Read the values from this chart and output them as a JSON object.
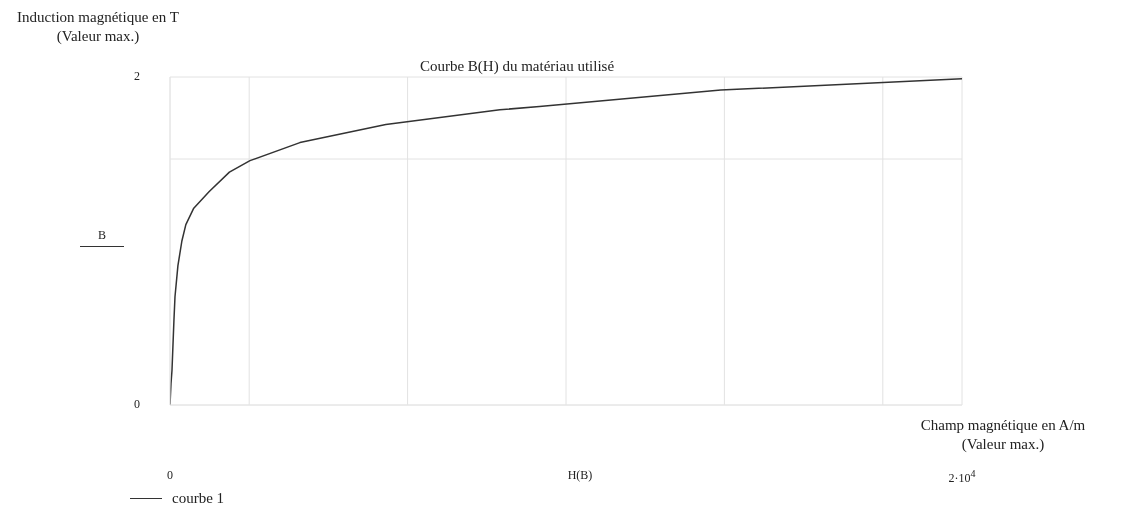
{
  "chart_data": {
    "type": "line",
    "title": "Courbe B(H) du matériau utilisé",
    "xlabel": "Champ magnétique en A/m\n(Valeur max.)",
    "ylabel": "Induction magnétique en T\n(Valeur max.)",
    "x": [
      0,
      25,
      50,
      100,
      126,
      200,
      300,
      400,
      600,
      985,
      1500,
      2020,
      3280,
      5450,
      8330,
      9330,
      13910,
      20000
    ],
    "series": [
      {
        "name": "courbe 1",
        "color": "#333333",
        "values": [
          0,
          0.13,
          0.21,
          0.52,
          0.66,
          0.85,
          1.0,
          1.1,
          1.2,
          1.3,
          1.42,
          1.49,
          1.6,
          1.71,
          1.8,
          1.82,
          1.92,
          1.99
        ]
      }
    ],
    "xlim": [
      0,
      20000
    ],
    "xticks": [
      0,
      {
        "value": 2000,
        "label": null
      },
      {
        "value": 6000,
        "label": null
      },
      {
        "value": 10000,
        "label": null
      },
      {
        "value": 14000,
        "label": null
      },
      {
        "value": 18000,
        "label": null
      },
      {
        "value": 20000,
        "label": "2·10$^{4}$"
      }
    ],
    "ylim": [
      0,
      2
    ],
    "yticks": [
      0,
      {
        "value": 1.5,
        "label": null
      },
      2
    ],
    "annotations": [
      "B",
      "H(B)"
    ],
    "grid": true,
    "legend": "bottom left",
    "marker": "none",
    "line_style": "solid"
  }
}
